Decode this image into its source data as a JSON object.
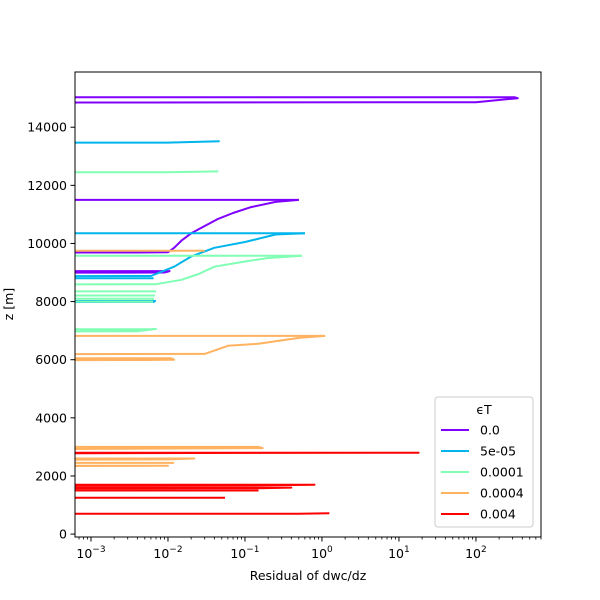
{
  "chart_data": {
    "type": "line",
    "title": "",
    "xlabel": "Residual of dwc/dz",
    "ylabel": "z [m]",
    "xscale": "log",
    "xlim": [
      0.00062,
      700
    ],
    "ylim": [
      -100,
      15900
    ],
    "xticks": [
      {
        "value": 0.001,
        "base": "10",
        "exp": "−3"
      },
      {
        "value": 0.01,
        "base": "10",
        "exp": "−2"
      },
      {
        "value": 0.1,
        "base": "10",
        "exp": "−1"
      },
      {
        "value": 1,
        "base": "10",
        "exp": "0"
      },
      {
        "value": 10,
        "base": "10",
        "exp": "1"
      },
      {
        "value": 100,
        "base": "10",
        "exp": "2"
      }
    ],
    "yticks": [
      {
        "value": 0,
        "label": "0"
      },
      {
        "value": 2000,
        "label": "2000"
      },
      {
        "value": 4000,
        "label": "4000"
      },
      {
        "value": 6000,
        "label": "6000"
      },
      {
        "value": 8000,
        "label": "8000"
      },
      {
        "value": 10000,
        "label": "10000"
      },
      {
        "value": 12000,
        "label": "12000"
      },
      {
        "value": 14000,
        "label": "14000"
      }
    ],
    "grid": false,
    "legend": {
      "title": "ϵT",
      "position": "lower-right"
    },
    "series": [
      {
        "name": "0.0",
        "color": "#8000ff",
        "segments": [
          [
            [
              0.0001,
              15030
            ],
            [
              320,
              15030
            ],
            [
              350,
              15000
            ],
            [
              100,
              14860
            ],
            [
              0.005,
              14850
            ],
            [
              0.0001,
              14850
            ]
          ],
          [
            [
              0.0001,
              11500
            ],
            [
              0.5,
              11500
            ]
          ],
          [
            [
              0.5,
              11500
            ],
            [
              0.25,
              11430
            ],
            [
              0.12,
              11250
            ],
            [
              0.07,
              11050
            ],
            [
              0.045,
              10850
            ],
            [
              0.03,
              10600
            ],
            [
              0.02,
              10350
            ],
            [
              0.015,
              10100
            ],
            [
              0.012,
              9850
            ],
            [
              0.01,
              9700
            ],
            [
              0.004,
              9690
            ],
            [
              0.0001,
              9690
            ]
          ],
          [
            [
              0.0001,
              9050
            ],
            [
              0.0105,
              9050
            ],
            [
              0.009,
              9000
            ],
            [
              0.0001,
              8990
            ]
          ]
        ]
      },
      {
        "name": "5e-05",
        "color": "#00b5eb",
        "segments": [
          [
            [
              0.0001,
              13470
            ],
            [
              0.01,
              13470
            ],
            [
              0.047,
              13520
            ]
          ],
          [
            [
              0.0001,
              10350
            ],
            [
              0.6,
              10350
            ]
          ],
          [
            [
              0.6,
              10350
            ],
            [
              0.25,
              10310
            ],
            [
              0.1,
              10050
            ],
            [
              0.04,
              9850
            ],
            [
              0.02,
              9550
            ],
            [
              0.012,
              9200
            ],
            [
              0.006,
              8880
            ],
            [
              0.0001,
              8870
            ]
          ],
          [
            [
              0.0001,
              8800
            ],
            [
              0.0065,
              8800
            ]
          ],
          [
            [
              0.0001,
              8020
            ],
            [
              0.0068,
              8020
            ],
            [
              0.0065,
              7990
            ],
            [
              0.0001,
              7985
            ]
          ]
        ]
      },
      {
        "name": "0.0001",
        "color": "#80ffb4",
        "segments": [
          [
            [
              0.0001,
              12450
            ],
            [
              0.01,
              12450
            ],
            [
              0.045,
              12480
            ]
          ],
          [
            [
              0.0001,
              9580
            ],
            [
              0.55,
              9580
            ]
          ],
          [
            [
              0.55,
              9580
            ],
            [
              0.2,
              9500
            ],
            [
              0.1,
              9380
            ],
            [
              0.04,
              9200
            ],
            [
              0.025,
              8950
            ],
            [
              0.015,
              8750
            ],
            [
              0.007,
              8600
            ],
            [
              0.0001,
              8590
            ]
          ],
          [
            [
              0.0001,
              8350
            ],
            [
              0.007,
              8350
            ]
          ],
          [
            [
              0.0001,
              8210
            ],
            [
              0.0068,
              8210
            ]
          ],
          [
            [
              0.0001,
              8100
            ],
            [
              0.0066,
              8100
            ]
          ],
          [
            [
              0.0001,
              8000
            ],
            [
              0.0064,
              8000
            ]
          ],
          [
            [
              0.0001,
              7050
            ],
            [
              0.006,
              7050
            ],
            [
              0.007,
              7060
            ],
            [
              0.004,
              6980
            ],
            [
              0.0001,
              6970
            ]
          ]
        ]
      },
      {
        "name": "0.0004",
        "color": "#ffb360",
        "segments": [
          [
            [
              0.0001,
              9750
            ],
            [
              0.03,
              9750
            ]
          ],
          [
            [
              0.0001,
              6820
            ],
            [
              1.1,
              6820
            ]
          ],
          [
            [
              1.1,
              6820
            ],
            [
              0.5,
              6750
            ],
            [
              0.15,
              6550
            ],
            [
              0.06,
              6480
            ],
            [
              0.03,
              6200
            ],
            [
              0.0001,
              6190
            ]
          ],
          [
            [
              0.0001,
              6050
            ],
            [
              0.011,
              6050
            ],
            [
              0.012,
              6000
            ],
            [
              0.005,
              5990
            ],
            [
              0.0001,
              5985
            ]
          ],
          [
            [
              0.0001,
              3000
            ],
            [
              0.15,
              3000
            ],
            [
              0.17,
              2960
            ],
            [
              0.001,
              2930
            ],
            [
              0.0001,
              2920
            ]
          ],
          [
            [
              0.0001,
              2600
            ],
            [
              0.022,
              2600
            ],
            [
              0.01,
              2570
            ],
            [
              0.0001,
              2560
            ]
          ],
          [
            [
              0.0001,
              2450
            ],
            [
              0.012,
              2450
            ]
          ],
          [
            [
              0.0001,
              2350
            ],
            [
              0.01,
              2350
            ],
            [
              0.0001,
              2340
            ]
          ]
        ]
      },
      {
        "name": "0.004",
        "color": "#ff0000",
        "segments": [
          [
            [
              0.0001,
              2800
            ],
            [
              18,
              2800
            ],
            [
              0.02,
              2790
            ],
            [
              0.0001,
              2780
            ]
          ],
          [
            [
              0.0001,
              1700
            ],
            [
              0.8,
              1700
            ],
            [
              0.2,
              1680
            ],
            [
              0.0001,
              1670
            ]
          ],
          [
            [
              0.0001,
              1600
            ],
            [
              0.4,
              1600
            ],
            [
              0.15,
              1580
            ],
            [
              0.0001,
              1570
            ]
          ],
          [
            [
              0.0001,
              1500
            ],
            [
              0.15,
              1500
            ]
          ],
          [
            [
              0.0001,
              1250
            ],
            [
              0.055,
              1250
            ]
          ],
          [
            [
              0.0001,
              700
            ],
            [
              0.5,
              700
            ],
            [
              1.25,
              720
            ]
          ]
        ]
      }
    ]
  }
}
